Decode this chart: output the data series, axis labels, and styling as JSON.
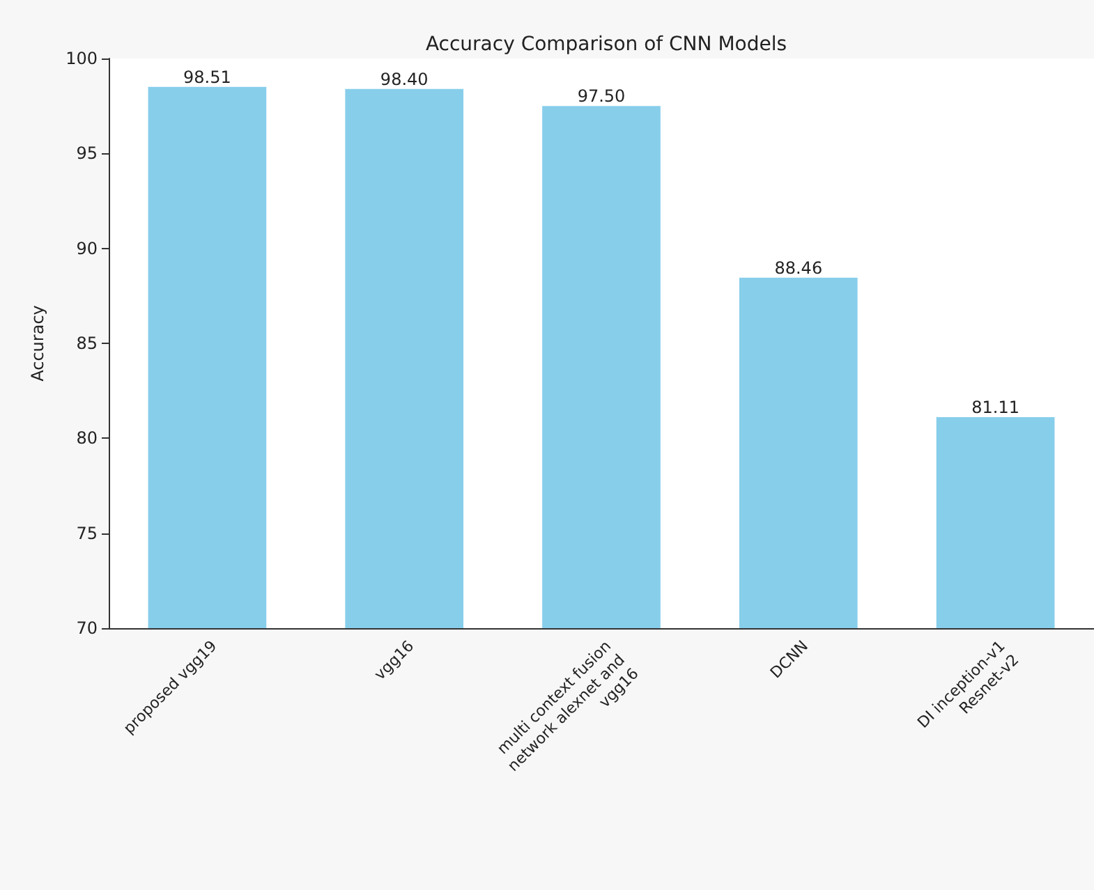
{
  "chart_data": {
    "type": "bar",
    "title": "Accuracy Comparison of CNN Models",
    "ylabel": "Accuracy",
    "categories": [
      "proposed vgg19",
      "vgg16",
      "multi context fusion\nnetwork alexnet and\nvgg16",
      "DCNN",
      "DI inception-v1\nResnet-v2"
    ],
    "values": [
      98.51,
      98.4,
      97.5,
      88.46,
      81.11
    ],
    "value_labels": [
      "98.51",
      "98.40",
      "97.50",
      "88.46",
      "81.11"
    ],
    "color": "#87ceeb",
    "ylim": [
      70,
      100
    ],
    "yticks": [
      70,
      75,
      80,
      85,
      90,
      95,
      100
    ],
    "grid": false
  }
}
